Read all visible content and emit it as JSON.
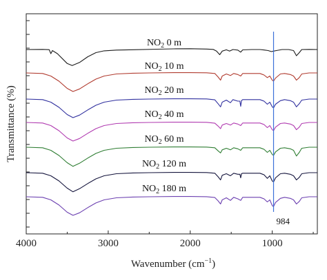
{
  "chart_data": {
    "type": "line",
    "xlabel": "Wavenumber (cm",
    "xlabel_sup": "−1",
    "xlabel_close": ")",
    "ylabel": "Transmittance (%)",
    "xlim": [
      4000,
      450
    ],
    "x_reversed": true,
    "xticks": [
      {
        "value": 4000,
        "label": "4000"
      },
      {
        "value": 3000,
        "label": "3000"
      },
      {
        "value": 2000,
        "label": "2000"
      },
      {
        "value": 1000,
        "label": "1000"
      }
    ],
    "y_ticks_count": 16,
    "marker": {
      "x": 984,
      "label": "984",
      "color": "#3a6fd8"
    },
    "series": [
      {
        "prefix": "NO",
        "sub": "2",
        "suffix": " 0 m",
        "color": "#1a1a1a",
        "points": [
          [
            4000,
            0
          ],
          [
            3800,
            0.3
          ],
          [
            3720,
            -0.2
          ],
          [
            3700,
            -8
          ],
          [
            3680,
            -2
          ],
          [
            3620,
            -8
          ],
          [
            3500,
            -27
          ],
          [
            3440,
            -31
          ],
          [
            3350,
            -25
          ],
          [
            3250,
            -14
          ],
          [
            3150,
            -6
          ],
          [
            3050,
            -2.5
          ],
          [
            2900,
            -1
          ],
          [
            2700,
            -0.4
          ],
          [
            2400,
            0.6
          ],
          [
            2200,
            1.3
          ],
          [
            2000,
            1.6
          ],
          [
            1800,
            1
          ],
          [
            1720,
            0.2
          ],
          [
            1680,
            -3
          ],
          [
            1640,
            -10
          ],
          [
            1610,
            -3
          ],
          [
            1560,
            -0.5
          ],
          [
            1520,
            -3
          ],
          [
            1480,
            0
          ],
          [
            1420,
            -1
          ],
          [
            1385,
            -5
          ],
          [
            1360,
            -0.6
          ],
          [
            1250,
            0
          ],
          [
            1150,
            0
          ],
          [
            1090,
            -1
          ],
          [
            1050,
            -2
          ],
          [
            1010,
            -4
          ],
          [
            984,
            -3
          ],
          [
            950,
            -2
          ],
          [
            880,
            0
          ],
          [
            800,
            0
          ],
          [
            740,
            -2
          ],
          [
            705,
            -12
          ],
          [
            670,
            -6
          ],
          [
            640,
            0
          ],
          [
            550,
            0.3
          ],
          [
            450,
            0
          ]
        ]
      },
      {
        "prefix": "NO",
        "sub": "2",
        "suffix": " 10 m",
        "color": "#b03a2e",
        "points": [
          [
            4000,
            0
          ],
          [
            3800,
            -1
          ],
          [
            3700,
            -6
          ],
          [
            3600,
            -16
          ],
          [
            3500,
            -30
          ],
          [
            3430,
            -36
          ],
          [
            3350,
            -31
          ],
          [
            3250,
            -21
          ],
          [
            3150,
            -12
          ],
          [
            3050,
            -6
          ],
          [
            2900,
            -2
          ],
          [
            2700,
            -0.5
          ],
          [
            2500,
            0
          ],
          [
            2200,
            0.5
          ],
          [
            2000,
            0.5
          ],
          [
            1800,
            0.3
          ],
          [
            1700,
            -1
          ],
          [
            1660,
            -8
          ],
          [
            1630,
            -14
          ],
          [
            1610,
            -6
          ],
          [
            1560,
            -2
          ],
          [
            1510,
            -5
          ],
          [
            1470,
            -1
          ],
          [
            1420,
            -3
          ],
          [
            1385,
            -6
          ],
          [
            1360,
            -1
          ],
          [
            1250,
            -1
          ],
          [
            1150,
            -1
          ],
          [
            1100,
            -4
          ],
          [
            1060,
            -9
          ],
          [
            1030,
            -6
          ],
          [
            1000,
            -14
          ],
          [
            984,
            -16
          ],
          [
            960,
            -10
          ],
          [
            900,
            -2
          ],
          [
            850,
            -1
          ],
          [
            780,
            -3
          ],
          [
            740,
            -6
          ],
          [
            705,
            -14
          ],
          [
            670,
            -9
          ],
          [
            640,
            -2
          ],
          [
            550,
            0
          ],
          [
            450,
            0
          ]
        ]
      },
      {
        "prefix": "NO",
        "sub": "2",
        "suffix": " 20 m",
        "color": "#2f2f9e",
        "points": [
          [
            4000,
            0
          ],
          [
            3800,
            -1
          ],
          [
            3700,
            -6
          ],
          [
            3600,
            -16
          ],
          [
            3500,
            -30
          ],
          [
            3430,
            -36
          ],
          [
            3350,
            -31
          ],
          [
            3250,
            -21
          ],
          [
            3150,
            -12
          ],
          [
            3050,
            -6
          ],
          [
            2900,
            -2
          ],
          [
            2700,
            -0.5
          ],
          [
            2500,
            0
          ],
          [
            2200,
            0.5
          ],
          [
            2000,
            0.5
          ],
          [
            1800,
            0.2
          ],
          [
            1700,
            -1.5
          ],
          [
            1660,
            -9
          ],
          [
            1630,
            -15
          ],
          [
            1610,
            -6
          ],
          [
            1560,
            -2
          ],
          [
            1510,
            -7
          ],
          [
            1480,
            -1
          ],
          [
            1420,
            -4
          ],
          [
            1395,
            -4
          ],
          [
            1385,
            -14
          ],
          [
            1375,
            -3
          ],
          [
            1360,
            -1
          ],
          [
            1250,
            -1
          ],
          [
            1150,
            -1
          ],
          [
            1100,
            -4
          ],
          [
            1060,
            -10
          ],
          [
            1030,
            -6
          ],
          [
            1000,
            -15
          ],
          [
            984,
            -17
          ],
          [
            960,
            -10
          ],
          [
            900,
            -3
          ],
          [
            850,
            -1
          ],
          [
            780,
            -3
          ],
          [
            740,
            -6
          ],
          [
            705,
            -15
          ],
          [
            670,
            -9
          ],
          [
            640,
            -2
          ],
          [
            550,
            0
          ],
          [
            450,
            0
          ]
        ]
      },
      {
        "prefix": "NO",
        "sub": "2",
        "suffix": " 40 m",
        "color": "#b03ab0",
        "points": [
          [
            4000,
            0
          ],
          [
            3800,
            -1
          ],
          [
            3700,
            -6
          ],
          [
            3600,
            -16
          ],
          [
            3500,
            -30
          ],
          [
            3430,
            -36
          ],
          [
            3350,
            -31
          ],
          [
            3250,
            -21
          ],
          [
            3150,
            -12
          ],
          [
            3050,
            -6
          ],
          [
            2900,
            -2
          ],
          [
            2700,
            -0.5
          ],
          [
            2500,
            0
          ],
          [
            2200,
            0.5
          ],
          [
            2000,
            0.5
          ],
          [
            1800,
            0.2
          ],
          [
            1700,
            -1.5
          ],
          [
            1660,
            -7
          ],
          [
            1630,
            -12
          ],
          [
            1610,
            -5
          ],
          [
            1560,
            -2
          ],
          [
            1510,
            -5
          ],
          [
            1470,
            -1
          ],
          [
            1420,
            -3
          ],
          [
            1385,
            -6
          ],
          [
            1360,
            -1
          ],
          [
            1250,
            -1
          ],
          [
            1150,
            -1
          ],
          [
            1100,
            -4
          ],
          [
            1060,
            -10
          ],
          [
            1030,
            -6
          ],
          [
            1000,
            -14
          ],
          [
            984,
            -16
          ],
          [
            960,
            -9
          ],
          [
            900,
            -2
          ],
          [
            850,
            -1
          ],
          [
            780,
            -3
          ],
          [
            740,
            -6
          ],
          [
            705,
            -14
          ],
          [
            670,
            -9
          ],
          [
            640,
            -2
          ],
          [
            550,
            0
          ],
          [
            450,
            0
          ]
        ]
      },
      {
        "prefix": "NO",
        "sub": "2",
        "suffix": " 60 m",
        "color": "#2e7d32",
        "points": [
          [
            4000,
            0
          ],
          [
            3800,
            -1
          ],
          [
            3700,
            -6
          ],
          [
            3600,
            -16
          ],
          [
            3500,
            -30
          ],
          [
            3430,
            -37
          ],
          [
            3350,
            -31
          ],
          [
            3250,
            -21
          ],
          [
            3150,
            -12
          ],
          [
            3050,
            -6
          ],
          [
            2900,
            -2
          ],
          [
            2700,
            -0.5
          ],
          [
            2500,
            0
          ],
          [
            2200,
            0.5
          ],
          [
            2000,
            0.5
          ],
          [
            1800,
            0.2
          ],
          [
            1700,
            -1
          ],
          [
            1660,
            -7
          ],
          [
            1630,
            -11
          ],
          [
            1610,
            -5
          ],
          [
            1560,
            -2
          ],
          [
            1510,
            -5
          ],
          [
            1470,
            -1
          ],
          [
            1420,
            -3
          ],
          [
            1385,
            -6
          ],
          [
            1360,
            -1
          ],
          [
            1250,
            -1
          ],
          [
            1150,
            -1
          ],
          [
            1100,
            -4
          ],
          [
            1060,
            -10
          ],
          [
            1030,
            -6
          ],
          [
            1000,
            -14
          ],
          [
            984,
            -16
          ],
          [
            960,
            -9
          ],
          [
            900,
            -2
          ],
          [
            850,
            -1
          ],
          [
            780,
            -3
          ],
          [
            740,
            -6
          ],
          [
            705,
            -17
          ],
          [
            670,
            -10
          ],
          [
            640,
            -2
          ],
          [
            550,
            0
          ],
          [
            450,
            0
          ]
        ]
      },
      {
        "prefix": "NO",
        "sub": "2",
        "suffix": " 120 m",
        "color": "#14143c",
        "points": [
          [
            4000,
            0
          ],
          [
            3800,
            -1
          ],
          [
            3700,
            -6
          ],
          [
            3600,
            -16
          ],
          [
            3500,
            -30
          ],
          [
            3430,
            -37
          ],
          [
            3350,
            -31
          ],
          [
            3250,
            -21
          ],
          [
            3150,
            -12
          ],
          [
            3050,
            -6
          ],
          [
            2900,
            -2
          ],
          [
            2700,
            -0.5
          ],
          [
            2500,
            0
          ],
          [
            2200,
            0.5
          ],
          [
            2000,
            0.5
          ],
          [
            1800,
            0.2
          ],
          [
            1700,
            -1
          ],
          [
            1660,
            -8
          ],
          [
            1630,
            -14
          ],
          [
            1610,
            -5
          ],
          [
            1560,
            -2
          ],
          [
            1510,
            -6
          ],
          [
            1470,
            -1
          ],
          [
            1420,
            -3
          ],
          [
            1395,
            -3
          ],
          [
            1385,
            -10
          ],
          [
            1375,
            -2
          ],
          [
            1360,
            -1
          ],
          [
            1250,
            -1
          ],
          [
            1150,
            -1
          ],
          [
            1100,
            -4
          ],
          [
            1060,
            -11
          ],
          [
            1030,
            -6
          ],
          [
            1000,
            -16
          ],
          [
            984,
            -18
          ],
          [
            960,
            -10
          ],
          [
            900,
            -2
          ],
          [
            850,
            -1
          ],
          [
            780,
            -3
          ],
          [
            740,
            -6
          ],
          [
            705,
            -14
          ],
          [
            670,
            -9
          ],
          [
            640,
            -2
          ],
          [
            550,
            0
          ],
          [
            450,
            0
          ]
        ]
      },
      {
        "prefix": "NO",
        "sub": "2",
        "suffix": " 180 m",
        "color": "#6b3fb0",
        "points": [
          [
            4000,
            0
          ],
          [
            3800,
            -1
          ],
          [
            3700,
            -6
          ],
          [
            3600,
            -16
          ],
          [
            3500,
            -30
          ],
          [
            3430,
            -36
          ],
          [
            3350,
            -31
          ],
          [
            3250,
            -21
          ],
          [
            3150,
            -12
          ],
          [
            3050,
            -6
          ],
          [
            2900,
            -2
          ],
          [
            2700,
            -0.5
          ],
          [
            2500,
            0
          ],
          [
            2200,
            0.5
          ],
          [
            2000,
            0.5
          ],
          [
            1800,
            0.2
          ],
          [
            1700,
            -1.5
          ],
          [
            1660,
            -8
          ],
          [
            1630,
            -14
          ],
          [
            1610,
            -6
          ],
          [
            1560,
            -2
          ],
          [
            1510,
            -7
          ],
          [
            1470,
            -1
          ],
          [
            1420,
            -4
          ],
          [
            1385,
            -7
          ],
          [
            1360,
            -1
          ],
          [
            1250,
            -1
          ],
          [
            1150,
            -1
          ],
          [
            1100,
            -4
          ],
          [
            1060,
            -10
          ],
          [
            1030,
            -6
          ],
          [
            1000,
            -17
          ],
          [
            984,
            -19
          ],
          [
            960,
            -11
          ],
          [
            900,
            -3
          ],
          [
            850,
            -1
          ],
          [
            780,
            -3
          ],
          [
            740,
            -6
          ],
          [
            705,
            -14
          ],
          [
            670,
            -9
          ],
          [
            640,
            -2
          ],
          [
            550,
            0
          ],
          [
            450,
            0
          ]
        ]
      }
    ]
  }
}
